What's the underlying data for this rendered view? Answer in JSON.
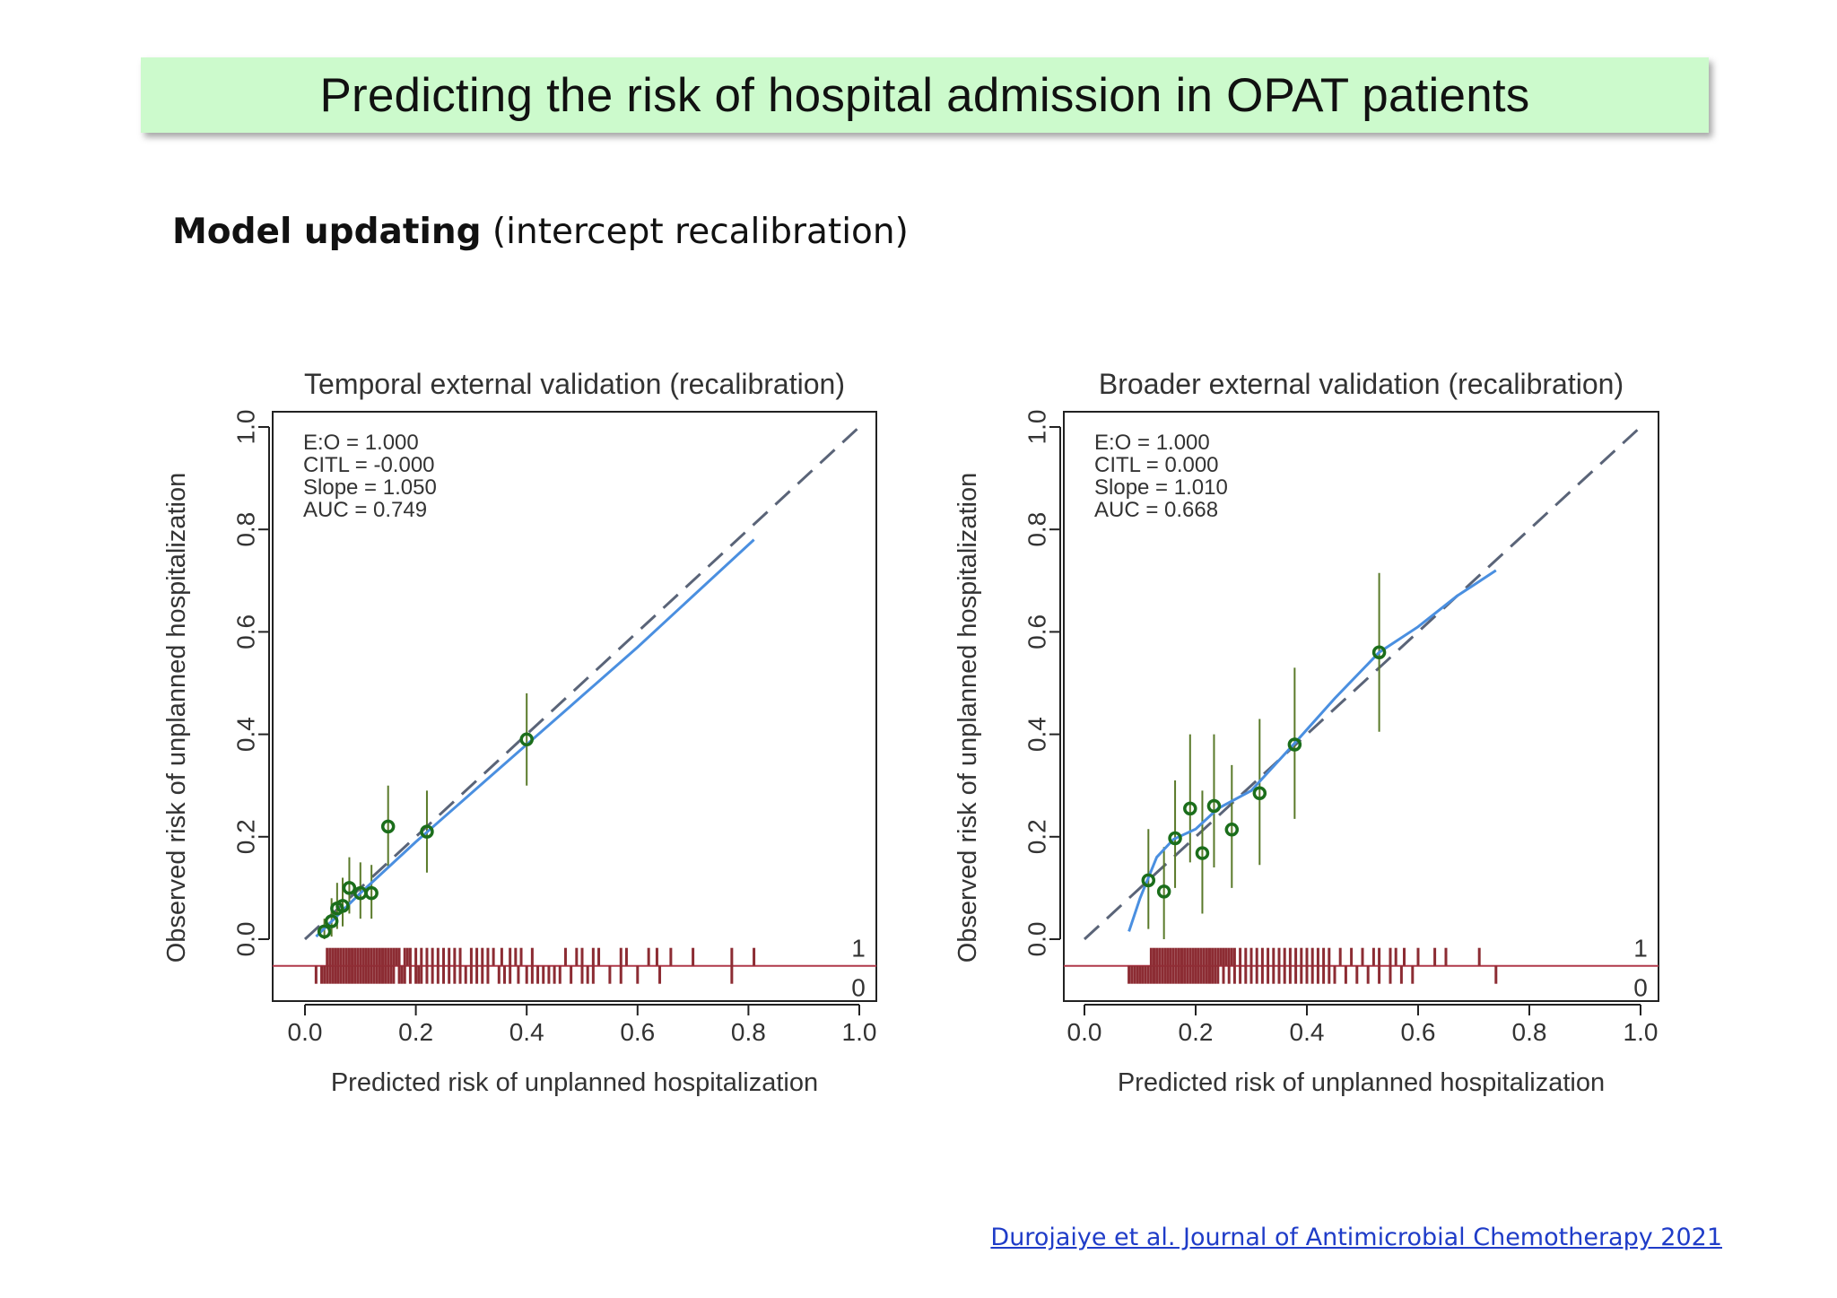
{
  "header": {
    "title": "Predicting the risk of hospital admission in OPAT patients"
  },
  "subtitle": {
    "bold": "Model updating",
    "rest": " (intercept recalibration)"
  },
  "citation": "Durojaiye et al. Journal of Antimicrobial Chemotherapy 2021",
  "colors": {
    "banner": "#ccfacc",
    "points": "#1b6e1b",
    "ci": "#5a7a2a",
    "smooth": "#4a8fe0",
    "diagonal": "#5a6478",
    "rug": "#8c2c33",
    "axis": "#222222"
  },
  "chart_data": [
    {
      "type": "scatter",
      "title": "Temporal external validation (recalibration)",
      "xlabel": "Predicted risk of unplanned hospitalization",
      "ylabel": "Observed risk of unplanned hospitalization",
      "xlim": [
        0,
        1
      ],
      "ylim": [
        -0.1,
        1.05
      ],
      "xticks": [
        "0.0",
        "0.2",
        "0.4",
        "0.6",
        "0.8",
        "1.0"
      ],
      "yticks": [
        "0.0",
        "0.2",
        "0.4",
        "0.6",
        "0.8",
        "1.0"
      ],
      "stats": [
        "E:O = 1.000",
        "CITL = -0.000",
        "Slope = 1.050",
        "AUC = 0.749"
      ],
      "rug_labels": [
        "1",
        "0"
      ],
      "points": [
        {
          "x": 0.035,
          "y": 0.015,
          "lo": 0.0,
          "hi": 0.04
        },
        {
          "x": 0.048,
          "y": 0.035,
          "lo": 0.005,
          "hi": 0.08
        },
        {
          "x": 0.058,
          "y": 0.06,
          "lo": 0.02,
          "hi": 0.11
        },
        {
          "x": 0.068,
          "y": 0.065,
          "lo": 0.025,
          "hi": 0.12
        },
        {
          "x": 0.08,
          "y": 0.1,
          "lo": 0.05,
          "hi": 0.16
        },
        {
          "x": 0.1,
          "y": 0.09,
          "lo": 0.04,
          "hi": 0.15
        },
        {
          "x": 0.12,
          "y": 0.09,
          "lo": 0.04,
          "hi": 0.145
        },
        {
          "x": 0.15,
          "y": 0.22,
          "lo": 0.14,
          "hi": 0.3
        },
        {
          "x": 0.22,
          "y": 0.21,
          "lo": 0.13,
          "hi": 0.29
        },
        {
          "x": 0.4,
          "y": 0.39,
          "lo": 0.3,
          "hi": 0.48
        }
      ],
      "smooth": [
        [
          0.02,
          0.005
        ],
        [
          0.1,
          0.09
        ],
        [
          0.2,
          0.19
        ],
        [
          0.3,
          0.285
        ],
        [
          0.4,
          0.38
        ],
        [
          0.5,
          0.475
        ],
        [
          0.6,
          0.57
        ],
        [
          0.7,
          0.67
        ],
        [
          0.81,
          0.78
        ]
      ],
      "rug_events": [
        0.04,
        0.045,
        0.05,
        0.055,
        0.06,
        0.065,
        0.07,
        0.075,
        0.08,
        0.085,
        0.09,
        0.095,
        0.1,
        0.105,
        0.11,
        0.115,
        0.12,
        0.125,
        0.13,
        0.135,
        0.14,
        0.145,
        0.15,
        0.155,
        0.16,
        0.165,
        0.17,
        0.18,
        0.185,
        0.19,
        0.2,
        0.21,
        0.22,
        0.23,
        0.24,
        0.25,
        0.26,
        0.27,
        0.28,
        0.3,
        0.31,
        0.32,
        0.33,
        0.34,
        0.355,
        0.37,
        0.38,
        0.39,
        0.41,
        0.47,
        0.49,
        0.5,
        0.52,
        0.53,
        0.57,
        0.58,
        0.62,
        0.635,
        0.66,
        0.7,
        0.77,
        0.81
      ],
      "rug_nonevents": [
        0.02,
        0.03,
        0.035,
        0.04,
        0.045,
        0.05,
        0.055,
        0.06,
        0.065,
        0.07,
        0.075,
        0.08,
        0.085,
        0.09,
        0.095,
        0.1,
        0.105,
        0.11,
        0.115,
        0.12,
        0.125,
        0.13,
        0.135,
        0.14,
        0.145,
        0.15,
        0.155,
        0.16,
        0.17,
        0.175,
        0.18,
        0.19,
        0.2,
        0.205,
        0.21,
        0.22,
        0.23,
        0.24,
        0.25,
        0.26,
        0.27,
        0.28,
        0.29,
        0.3,
        0.31,
        0.32,
        0.33,
        0.35,
        0.36,
        0.37,
        0.385,
        0.4,
        0.41,
        0.42,
        0.43,
        0.44,
        0.45,
        0.46,
        0.48,
        0.5,
        0.51,
        0.52,
        0.55,
        0.57,
        0.6,
        0.64,
        0.77
      ]
    },
    {
      "type": "scatter",
      "title": "Broader external validation (recalibration)",
      "xlabel": "Predicted risk of unplanned hospitalization",
      "ylabel": "Observed risk of unplanned hospitalization",
      "xlim": [
        0,
        1
      ],
      "ylim": [
        -0.1,
        1.05
      ],
      "xticks": [
        "0.0",
        "0.2",
        "0.4",
        "0.6",
        "0.8",
        "1.0"
      ],
      "yticks": [
        "0.0",
        "0.2",
        "0.4",
        "0.6",
        "0.8",
        "1.0"
      ],
      "stats": [
        "E:O = 1.000",
        "CITL = 0.000",
        "Slope = 1.010",
        "AUC = 0.668"
      ],
      "rug_labels": [
        "1",
        "0"
      ],
      "points": [
        {
          "x": 0.115,
          "y": 0.115,
          "lo": 0.02,
          "hi": 0.215
        },
        {
          "x": 0.143,
          "y": 0.093,
          "lo": 0.0,
          "hi": 0.18
        },
        {
          "x": 0.163,
          "y": 0.197,
          "lo": 0.1,
          "hi": 0.31
        },
        {
          "x": 0.19,
          "y": 0.255,
          "lo": 0.15,
          "hi": 0.4
        },
        {
          "x": 0.212,
          "y": 0.168,
          "lo": 0.05,
          "hi": 0.29
        },
        {
          "x": 0.233,
          "y": 0.26,
          "lo": 0.14,
          "hi": 0.4
        },
        {
          "x": 0.265,
          "y": 0.214,
          "lo": 0.1,
          "hi": 0.34
        },
        {
          "x": 0.315,
          "y": 0.285,
          "lo": 0.145,
          "hi": 0.43
        },
        {
          "x": 0.378,
          "y": 0.38,
          "lo": 0.235,
          "hi": 0.53
        },
        {
          "x": 0.53,
          "y": 0.56,
          "lo": 0.405,
          "hi": 0.715
        }
      ],
      "smooth": [
        [
          0.08,
          0.015
        ],
        [
          0.1,
          0.08
        ],
        [
          0.13,
          0.16
        ],
        [
          0.16,
          0.195
        ],
        [
          0.2,
          0.215
        ],
        [
          0.24,
          0.255
        ],
        [
          0.3,
          0.29
        ],
        [
          0.38,
          0.385
        ],
        [
          0.45,
          0.47
        ],
        [
          0.53,
          0.56
        ],
        [
          0.6,
          0.61
        ],
        [
          0.67,
          0.67
        ],
        [
          0.74,
          0.72
        ]
      ],
      "rug_events": [
        0.12,
        0.125,
        0.13,
        0.135,
        0.14,
        0.145,
        0.15,
        0.155,
        0.16,
        0.165,
        0.17,
        0.175,
        0.18,
        0.185,
        0.19,
        0.195,
        0.2,
        0.205,
        0.21,
        0.215,
        0.22,
        0.225,
        0.23,
        0.235,
        0.24,
        0.245,
        0.25,
        0.255,
        0.26,
        0.265,
        0.27,
        0.28,
        0.29,
        0.3,
        0.31,
        0.32,
        0.33,
        0.34,
        0.35,
        0.36,
        0.37,
        0.38,
        0.39,
        0.4,
        0.41,
        0.42,
        0.43,
        0.44,
        0.46,
        0.48,
        0.5,
        0.52,
        0.53,
        0.55,
        0.56,
        0.575,
        0.6,
        0.63,
        0.65,
        0.71
      ],
      "rug_nonevents": [
        0.08,
        0.085,
        0.09,
        0.095,
        0.1,
        0.105,
        0.11,
        0.115,
        0.12,
        0.125,
        0.13,
        0.135,
        0.14,
        0.145,
        0.15,
        0.155,
        0.16,
        0.165,
        0.17,
        0.175,
        0.18,
        0.185,
        0.19,
        0.195,
        0.2,
        0.205,
        0.21,
        0.215,
        0.22,
        0.225,
        0.23,
        0.235,
        0.24,
        0.25,
        0.26,
        0.27,
        0.28,
        0.29,
        0.3,
        0.31,
        0.32,
        0.33,
        0.34,
        0.35,
        0.36,
        0.37,
        0.38,
        0.39,
        0.4,
        0.41,
        0.42,
        0.43,
        0.44,
        0.45,
        0.47,
        0.49,
        0.51,
        0.53,
        0.55,
        0.57,
        0.59,
        0.74
      ]
    }
  ]
}
